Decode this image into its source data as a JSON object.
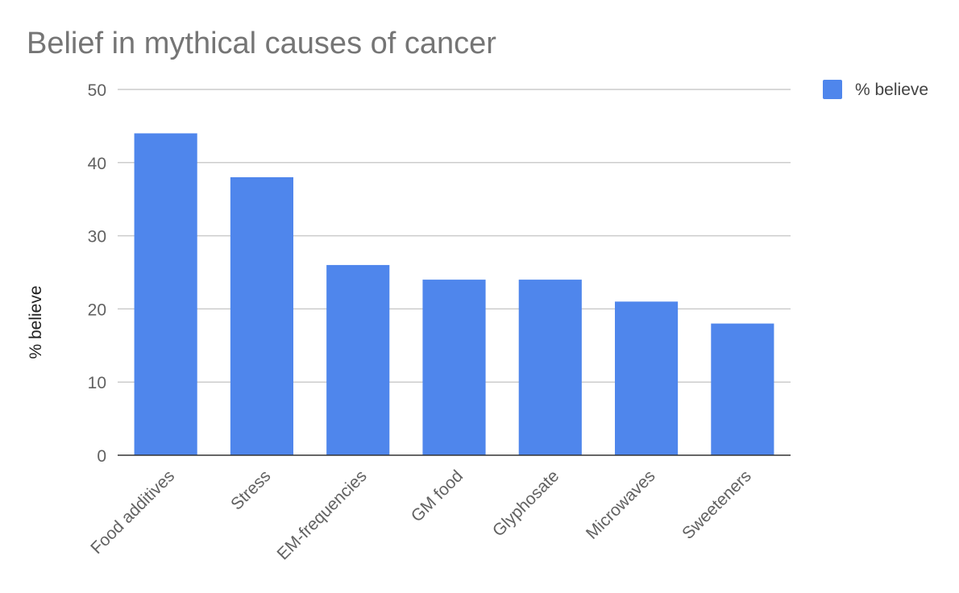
{
  "chart_data": {
    "type": "bar",
    "title": "Belief in mythical causes of cancer",
    "ylabel": "% believe",
    "xlabel": "",
    "categories": [
      "Food additives",
      "Stress",
      "EM-frequencies",
      "GM food",
      "Glyphosate",
      "Microwaves",
      "Sweeteners"
    ],
    "series": [
      {
        "name": "% believe",
        "values": [
          44,
          38,
          26,
          24,
          24,
          21,
          18
        ]
      }
    ],
    "ylim": [
      0,
      50
    ],
    "yticks": [
      0,
      10,
      20,
      30,
      40,
      50
    ],
    "grid": true,
    "legend_position": "top-right",
    "colors": {
      "bar": "#4f86ec"
    }
  }
}
